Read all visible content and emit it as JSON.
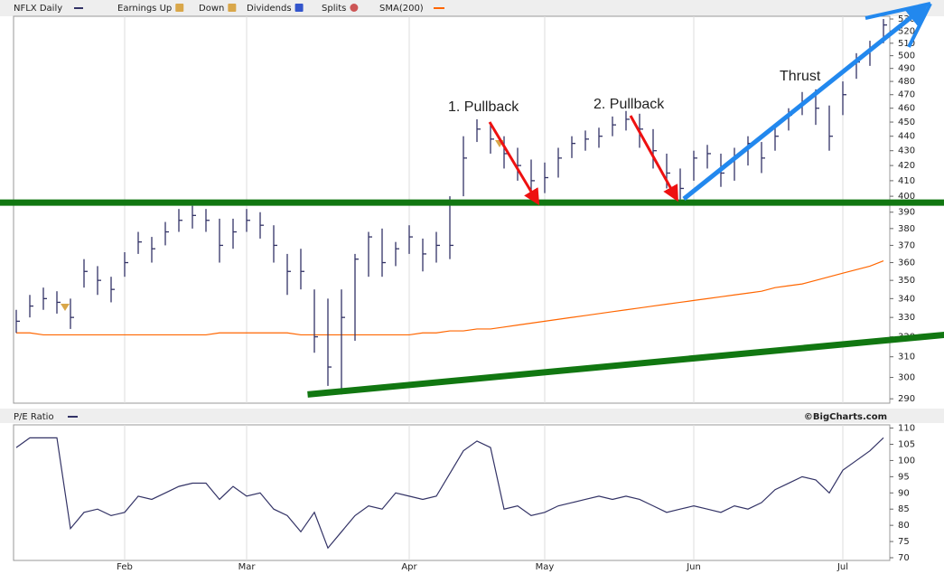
{
  "chart_data": [
    {
      "type": "ohlc",
      "series": [
        {
          "name": "NFLX Daily",
          "color": "#333366",
          "high": [
            334,
            342,
            346,
            344,
            340,
            362,
            358,
            352,
            366,
            378,
            375,
            384,
            392,
            394,
            392,
            386,
            386,
            392,
            390,
            382,
            365,
            368,
            345,
            340,
            345,
            365,
            378,
            380,
            372,
            382,
            374,
            378,
            400,
            440,
            452,
            448,
            440,
            432,
            424,
            422,
            432,
            440,
            444,
            446,
            454,
            458,
            456,
            445,
            428,
            418,
            430,
            434,
            428,
            432,
            440,
            436,
            446,
            460,
            472,
            474,
            462,
            480,
            502,
            512,
            530
          ],
          "low": [
            322,
            330,
            334,
            332,
            324,
            346,
            342,
            338,
            352,
            365,
            360,
            370,
            378,
            380,
            378,
            360,
            368,
            378,
            374,
            360,
            342,
            345,
            312,
            296,
            292,
            318,
            352,
            352,
            358,
            365,
            355,
            360,
            362,
            400,
            436,
            428,
            418,
            410,
            398,
            402,
            412,
            425,
            430,
            432,
            440,
            444,
            432,
            418,
            405,
            398,
            410,
            418,
            406,
            410,
            420,
            415,
            430,
            444,
            455,
            448,
            430,
            455,
            482,
            492,
            510
          ],
          "close": [
            328,
            336,
            340,
            338,
            330,
            355,
            350,
            345,
            360,
            372,
            368,
            378,
            385,
            388,
            385,
            370,
            378,
            385,
            382,
            370,
            355,
            355,
            320,
            305,
            330,
            362,
            375,
            360,
            368,
            375,
            365,
            370,
            370,
            425,
            445,
            438,
            428,
            420,
            410,
            412,
            425,
            435,
            438,
            440,
            448,
            452,
            445,
            430,
            415,
            405,
            425,
            428,
            415,
            425,
            435,
            425,
            440,
            455,
            465,
            460,
            440,
            470,
            495,
            505,
            525
          ]
        },
        {
          "name": "SMA(200)",
          "color": "#ff6600",
          "values": [
            322,
            322,
            321,
            321,
            321,
            321,
            321,
            321,
            321,
            321,
            321,
            321,
            321,
            321,
            321,
            322,
            322,
            322,
            322,
            322,
            322,
            321,
            321,
            321,
            321,
            321,
            321,
            321,
            321,
            321,
            322,
            322,
            323,
            323,
            324,
            324,
            325,
            326,
            327,
            328,
            329,
            330,
            331,
            332,
            333,
            334,
            335,
            336,
            337,
            338,
            339,
            340,
            341,
            342,
            343,
            344,
            346,
            347,
            348,
            350,
            352,
            354,
            356,
            358,
            361
          ]
        }
      ],
      "marker_legend": [
        "Earnings Up",
        "Down",
        "Dividends",
        "Splits"
      ],
      "ylim": [
        288,
        540
      ],
      "log_scale": true,
      "yticks": [
        290,
        300,
        310,
        320,
        330,
        340,
        350,
        360,
        370,
        380,
        390,
        400,
        410,
        420,
        430,
        440,
        450,
        460,
        470,
        480,
        490,
        500,
        510,
        520,
        530
      ],
      "support": {
        "value": 396,
        "color": "#117711"
      },
      "trendline": {
        "x": [
          21.5,
          68.5
        ],
        "y": [
          292,
          321
        ],
        "color": "#117711"
      },
      "annotations": [
        {
          "text": "1. Pullback",
          "color": "#ee1111"
        },
        {
          "text": "2. Pullback",
          "color": "#ee1111"
        },
        {
          "text": "Thrust",
          "color": "#2288ee"
        }
      ]
    },
    {
      "type": "line",
      "categories": [
        null,
        null,
        null,
        null,
        null,
        null,
        null,
        null,
        "Feb",
        null,
        null,
        null,
        null,
        null,
        null,
        null,
        null,
        "Mar",
        null,
        null,
        null,
        null,
        null,
        null,
        null,
        null,
        null,
        null,
        null,
        "Apr",
        null,
        null,
        null,
        null,
        null,
        null,
        null,
        null,
        null,
        "May",
        null,
        null,
        null,
        null,
        null,
        null,
        null,
        null,
        null,
        null,
        "Jun",
        null,
        null,
        null,
        null,
        null,
        null,
        null,
        null,
        null,
        null,
        "Jul",
        null,
        null,
        null
      ],
      "series": [
        {
          "name": "P/E Ratio",
          "color": "#333366",
          "values": [
            104,
            107,
            107,
            107,
            79,
            84,
            85,
            83,
            84,
            89,
            88,
            90,
            92,
            93,
            93,
            88,
            92,
            89,
            90,
            85,
            83,
            78,
            84,
            73,
            78,
            83,
            86,
            85,
            90,
            89,
            88,
            89,
            96,
            103,
            106,
            104,
            85,
            86,
            83,
            84,
            86,
            87,
            88,
            89,
            88,
            89,
            88,
            86,
            84,
            85,
            86,
            85,
            84,
            86,
            85,
            87,
            91,
            93,
            95,
            94,
            90,
            97,
            100,
            103,
            107
          ]
        }
      ],
      "ylim": [
        70,
        111
      ],
      "yticks": [
        70,
        75,
        80,
        85,
        90,
        95,
        100,
        105,
        110
      ],
      "credit": "©BigCharts.com"
    }
  ]
}
